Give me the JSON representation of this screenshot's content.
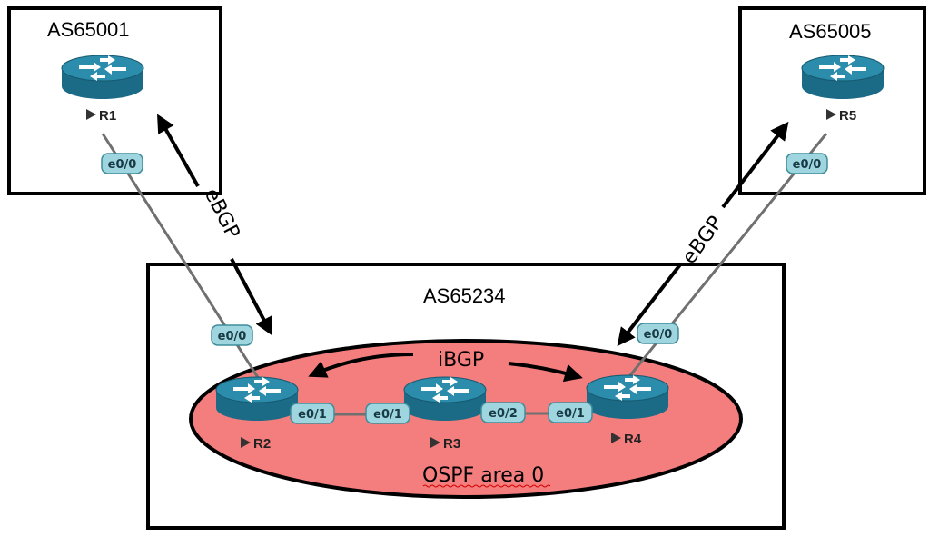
{
  "as_boxes": {
    "left": "AS65001",
    "right": "AS65005",
    "core": "AS65234"
  },
  "routers": {
    "r1": "R1",
    "r2": "R2",
    "r3": "R3",
    "r4": "R4",
    "r5": "R5"
  },
  "interfaces": {
    "r1_e00": "e0/0",
    "r2_e00": "e0/0",
    "r2_e01": "e0/1",
    "r3_e01": "e0/1",
    "r3_e02": "e0/2",
    "r4_e01": "e0/1",
    "r4_e00": "e0/0",
    "r5_e00": "e0/0"
  },
  "protocols": {
    "ebgp_left": "eBGP",
    "ebgp_right": "eBGP",
    "ibgp": "iBGP",
    "ospf": "OSPF area 0"
  },
  "colors": {
    "router_top": "#2b8cab",
    "router_side": "#1b6a86",
    "interface_fill": "#9fd5df",
    "interface_stroke": "#3e8d9c",
    "ospf_fill": "#f47d7d",
    "link": "#707070"
  }
}
